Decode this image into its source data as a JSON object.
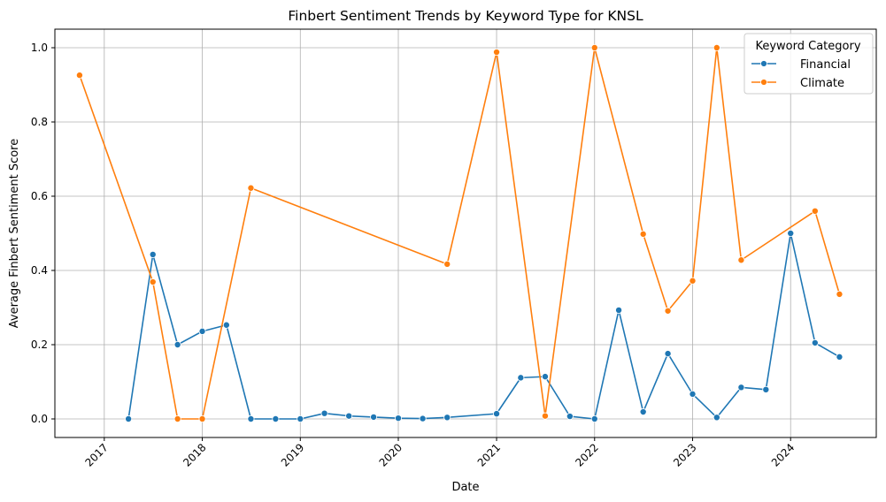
{
  "chart_data": {
    "type": "line",
    "title": "Finbert Sentiment Trends by Keyword Type for KNSL",
    "xlabel": "Date",
    "ylabel": "Average Finbert Sentiment Score",
    "x_ticks": [
      "2017",
      "2018",
      "2019",
      "2020",
      "2021",
      "2022",
      "2023",
      "2024"
    ],
    "y_ticks": [
      "0.0",
      "0.2",
      "0.4",
      "0.6",
      "0.8",
      "1.0"
    ],
    "ylim": [
      -0.05,
      1.05
    ],
    "xlim": [
      "2016-07-01",
      "2024-11-15"
    ],
    "grid": true,
    "legend": {
      "title": "Keyword Category",
      "placement": "top-right"
    },
    "series": [
      {
        "name": "Financial",
        "color": "#1f77b4",
        "points": [
          {
            "x": "2017-04-01",
            "y": 0.0
          },
          {
            "x": "2017-07-01",
            "y": 0.443
          },
          {
            "x": "2017-10-01",
            "y": 0.2
          },
          {
            "x": "2018-01-01",
            "y": 0.236
          },
          {
            "x": "2018-04-01",
            "y": 0.253
          },
          {
            "x": "2018-07-01",
            "y": 0.0
          },
          {
            "x": "2018-10-01",
            "y": 0.0
          },
          {
            "x": "2019-01-01",
            "y": 0.0
          },
          {
            "x": "2019-04-01",
            "y": 0.015
          },
          {
            "x": "2019-07-01",
            "y": 0.008
          },
          {
            "x": "2019-10-01",
            "y": 0.005
          },
          {
            "x": "2020-01-01",
            "y": 0.002
          },
          {
            "x": "2020-04-01",
            "y": 0.001
          },
          {
            "x": "2020-07-01",
            "y": 0.004
          },
          {
            "x": "2021-01-01",
            "y": 0.014
          },
          {
            "x": "2021-04-01",
            "y": 0.111
          },
          {
            "x": "2021-07-01",
            "y": 0.114
          },
          {
            "x": "2021-10-01",
            "y": 0.007
          },
          {
            "x": "2022-01-01",
            "y": 0.0
          },
          {
            "x": "2022-04-01",
            "y": 0.293
          },
          {
            "x": "2022-07-01",
            "y": 0.019
          },
          {
            "x": "2022-10-01",
            "y": 0.176
          },
          {
            "x": "2023-01-01",
            "y": 0.067
          },
          {
            "x": "2023-04-01",
            "y": 0.004
          },
          {
            "x": "2023-07-01",
            "y": 0.085
          },
          {
            "x": "2023-10-01",
            "y": 0.079
          },
          {
            "x": "2024-01-01",
            "y": 0.5
          },
          {
            "x": "2024-04-01",
            "y": 0.205
          },
          {
            "x": "2024-07-01",
            "y": 0.167
          }
        ]
      },
      {
        "name": "Climate",
        "color": "#ff7f0e",
        "points": [
          {
            "x": "2016-10-01",
            "y": 0.926
          },
          {
            "x": "2017-07-01",
            "y": 0.369
          },
          {
            "x": "2017-10-01",
            "y": 0.0
          },
          {
            "x": "2018-01-01",
            "y": 0.0
          },
          {
            "x": "2018-07-01",
            "y": 0.622
          },
          {
            "x": "2020-07-01",
            "y": 0.417
          },
          {
            "x": "2021-01-01",
            "y": 0.988
          },
          {
            "x": "2021-07-01",
            "y": 0.008
          },
          {
            "x": "2022-01-01",
            "y": 1.0
          },
          {
            "x": "2022-07-01",
            "y": 0.498
          },
          {
            "x": "2022-10-01",
            "y": 0.291
          },
          {
            "x": "2023-01-01",
            "y": 0.372
          },
          {
            "x": "2023-04-01",
            "y": 1.0
          },
          {
            "x": "2023-07-01",
            "y": 0.428
          },
          {
            "x": "2024-04-01",
            "y": 0.56
          },
          {
            "x": "2024-07-01",
            "y": 0.336
          }
        ]
      }
    ]
  }
}
